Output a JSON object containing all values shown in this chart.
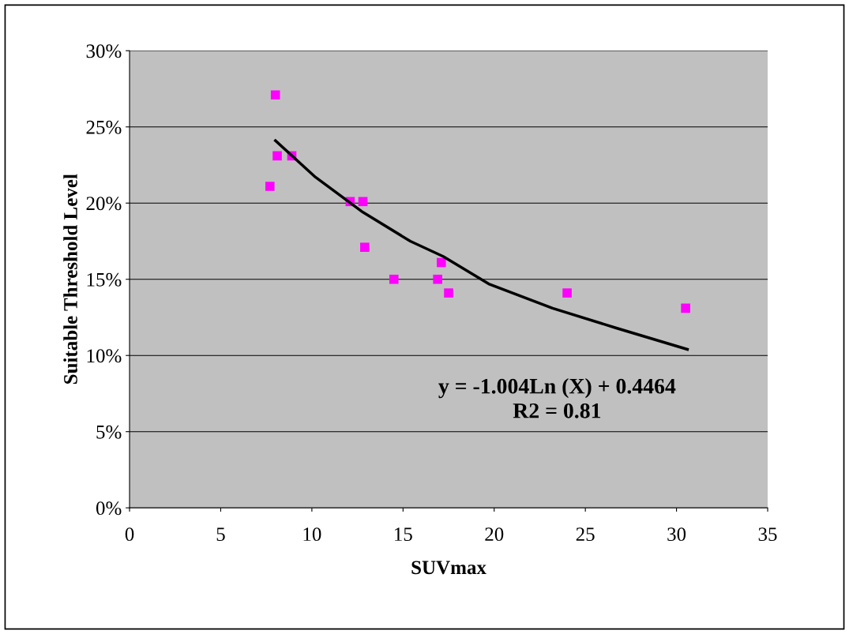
{
  "chart_data": {
    "type": "scatter",
    "xlabel": "SUVmax",
    "ylabel": "Suitable Threshold Level",
    "xlim": [
      0,
      35
    ],
    "xticks": [
      0,
      5,
      10,
      15,
      20,
      25,
      30,
      35
    ],
    "ylim": [
      0,
      30
    ],
    "yticks": [
      {
        "value": 0,
        "label": "0%"
      },
      {
        "value": 5,
        "label": "5%"
      },
      {
        "value": 10,
        "label": "10%"
      },
      {
        "value": 15,
        "label": "15%"
      },
      {
        "value": 20,
        "label": "20%"
      },
      {
        "value": 25,
        "label": "25%"
      },
      {
        "value": 30,
        "label": "30%"
      }
    ],
    "grid": "y",
    "legend": false,
    "marker": "square",
    "series": [
      {
        "color": "#ff00ff",
        "x": [
          8.0,
          8.1,
          8.9,
          7.7,
          12.1,
          12.8,
          12.9,
          14.5,
          16.9,
          17.1,
          17.5,
          24.0,
          30.5
        ],
        "values": [
          27.1,
          23.1,
          23.1,
          21.1,
          20.1,
          20.1,
          17.1,
          15.0,
          15.0,
          16.1,
          14.1,
          14.1,
          13.1
        ]
      },
      {
        "type": "line",
        "color": "#000000",
        "marker": "none",
        "line_style": "solid",
        "x": [
          8.0,
          10.2,
          12.8,
          15.4,
          17.2,
          19.7,
          23.2,
          26.7,
          30.6
        ],
        "values": [
          24.1,
          21.7,
          19.4,
          17.5,
          16.5,
          14.7,
          13.1,
          11.8,
          10.4
        ]
      }
    ],
    "annotations": [
      "y = -1.004Ln (X) + 0.4464\nR2 = 0.81"
    ]
  }
}
